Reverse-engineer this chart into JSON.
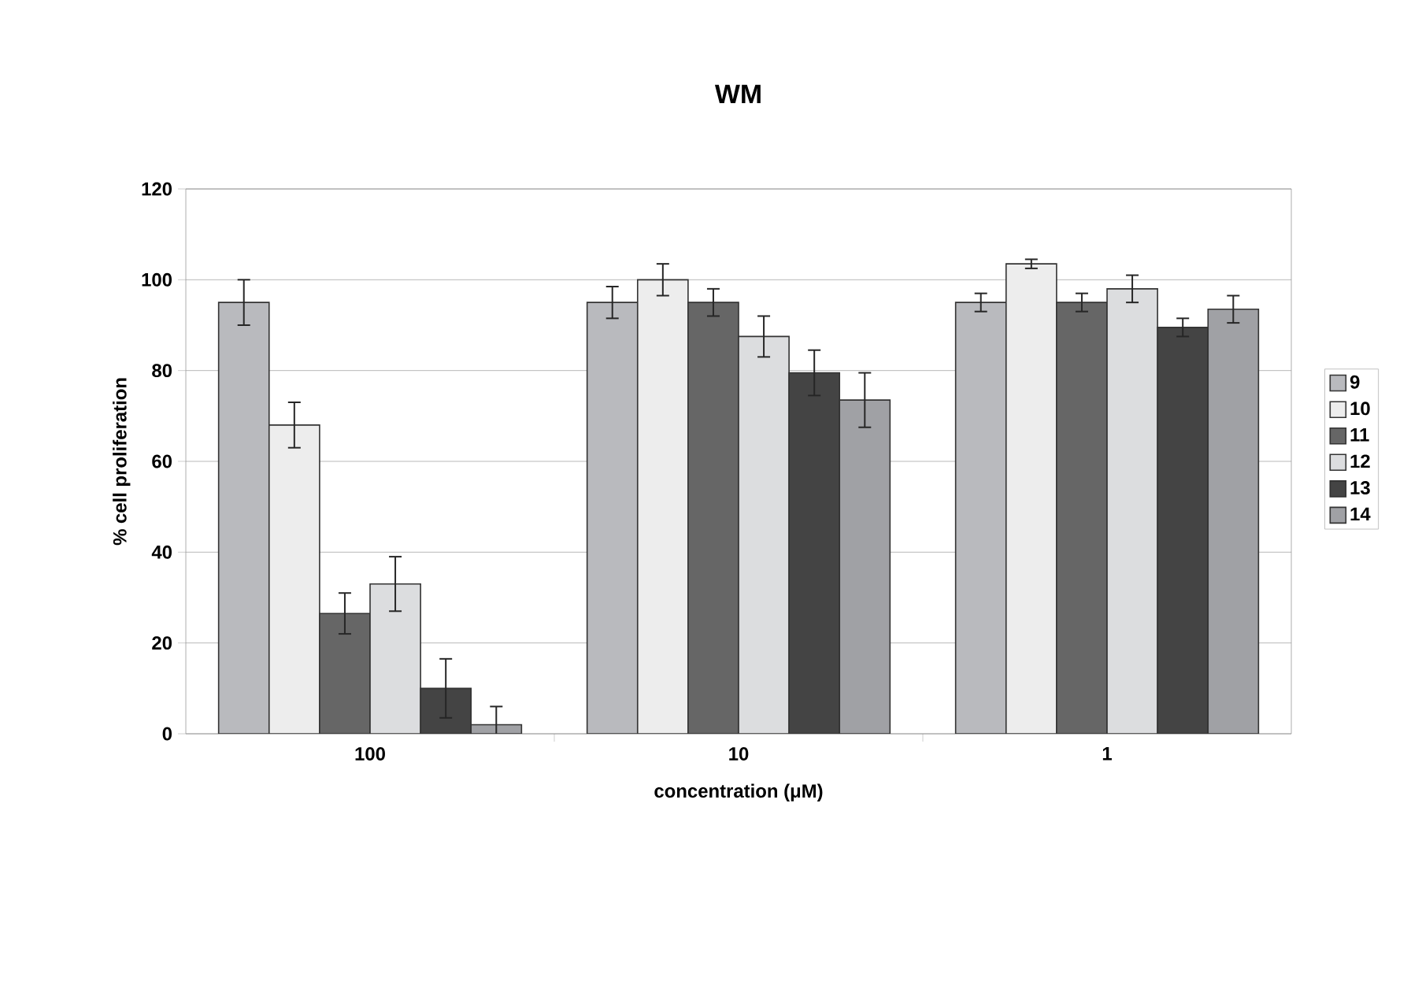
{
  "chart_data": {
    "type": "bar",
    "title": "WM",
    "xlabel": "concentration (μM)",
    "ylabel": "% cell proliferation",
    "categories": [
      "100",
      "10",
      "1"
    ],
    "series": [
      {
        "name": "9",
        "color": "#b9babe",
        "values": [
          95,
          95,
          95
        ],
        "errors": [
          5,
          3.5,
          2
        ]
      },
      {
        "name": "10",
        "color": "#ededed",
        "values": [
          68,
          100,
          103.5
        ],
        "errors": [
          5,
          3.5,
          1
        ]
      },
      {
        "name": "11",
        "color": "#666666",
        "values": [
          26.5,
          95,
          95
        ],
        "errors": [
          4.5,
          3,
          2
        ]
      },
      {
        "name": "12",
        "color": "#dcdddf",
        "values": [
          33,
          87.5,
          98
        ],
        "errors": [
          6,
          4.5,
          3
        ]
      },
      {
        "name": "13",
        "color": "#444444",
        "values": [
          10,
          79.5,
          89.5
        ],
        "errors": [
          6.5,
          5,
          2
        ]
      },
      {
        "name": "14",
        "color": "#a0a1a5",
        "values": [
          2,
          73.5,
          93.5
        ],
        "errors": [
          4,
          6,
          3
        ]
      }
    ],
    "ylim": [
      0,
      120
    ],
    "yticks": [
      0,
      20,
      40,
      60,
      80,
      100,
      120
    ],
    "grid": "y",
    "legend": "right"
  }
}
